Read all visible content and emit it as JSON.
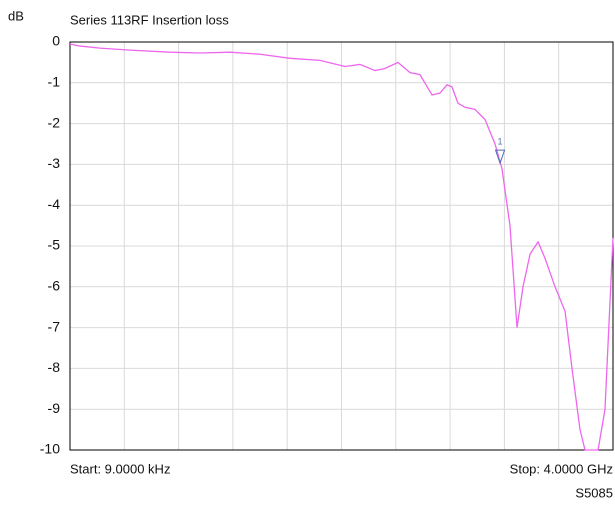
{
  "chart_data": {
    "type": "line",
    "title": "Series 113RF Insertion loss",
    "y_unit_label": "dB",
    "start_label": "Start: 9.0000 kHz",
    "stop_label": "Stop: 4.0000 GHz",
    "footer": "S5085",
    "xlim": [
      9e-06,
      4
    ],
    "x_divisions": 10,
    "ylim": [
      -10,
      0
    ],
    "yticks": [
      0,
      -1,
      -2,
      -3,
      -4,
      -5,
      -6,
      -7,
      -8,
      -9,
      -10
    ],
    "grid": true,
    "x": [
      9e-06,
      0.074,
      0.221,
      0.442,
      0.737,
      0.958,
      1.179,
      1.4,
      1.621,
      1.842,
      2.026,
      2.136,
      2.247,
      2.32,
      2.416,
      2.505,
      2.578,
      2.667,
      2.726,
      2.777,
      2.814,
      2.858,
      2.91,
      2.983,
      3.057,
      3.131,
      3.182,
      3.241,
      3.293,
      3.337,
      3.389,
      3.448,
      3.499,
      3.573,
      3.647,
      3.698,
      3.757,
      3.794,
      3.89,
      3.941,
      4.0
    ],
    "series": [
      {
        "color": "#ee66ee",
        "values": [
          -0.05,
          -0.1,
          -0.15,
          -0.2,
          -0.25,
          -0.27,
          -0.25,
          -0.3,
          -0.4,
          -0.45,
          -0.6,
          -0.55,
          -0.7,
          -0.65,
          -0.5,
          -0.75,
          -0.8,
          -1.3,
          -1.25,
          -1.05,
          -1.1,
          -1.5,
          -1.6,
          -1.65,
          -1.9,
          -2.5,
          -3.1,
          -4.5,
          -7.0,
          -6.0,
          -5.2,
          -4.9,
          -5.3,
          -6.0,
          -6.6,
          -8.0,
          -9.5,
          -10,
          -10,
          -9.0,
          -4.8
        ]
      }
    ],
    "markers": [
      {
        "label": "1",
        "x": 3.168,
        "value": -2.97,
        "color": "#4a6fb5"
      }
    ]
  }
}
